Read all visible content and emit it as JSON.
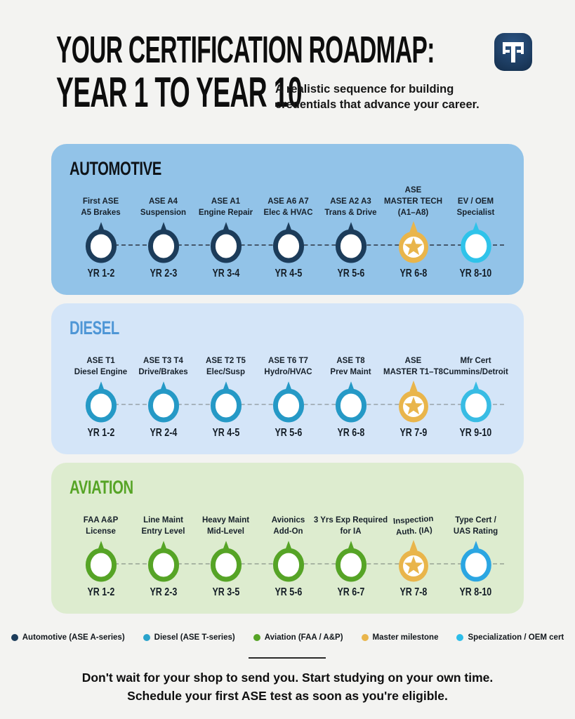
{
  "header": {
    "title_line1": "YOUR CERTIFICATION ROADMAP:",
    "title_line2": "YEAR 1 TO YEAR 10",
    "subtitle_line1": "A realistic sequence for building",
    "subtitle_line2": "credentials that advance your career.",
    "logo_monogram": "TF",
    "logo_bg_color": "#1d3c63"
  },
  "colors": {
    "page_bg": "#f3f3f1",
    "master_gold": "#e9b54b",
    "specialist_cyan": "#2cbde9"
  },
  "sections": [
    {
      "name": "AUTOMOTIVE",
      "slug": "automotive",
      "bg": "#92c3e8",
      "title_color": "#0f1419",
      "node_color": "#1c3c5a",
      "specialist_color": "#2fc3ea",
      "master_color": "#e9b54b",
      "dash_color": "#45586b",
      "milestones": [
        {
          "label_lines": [
            "First ASE",
            "A5 Brakes"
          ],
          "year": "YR 1-2",
          "type": "core"
        },
        {
          "label_lines": [
            "ASE A4",
            "Suspension"
          ],
          "year": "YR 2-3",
          "type": "core"
        },
        {
          "label_lines": [
            "ASE A1",
            "Engine Repair"
          ],
          "year": "YR 3-4",
          "type": "core"
        },
        {
          "label_lines": [
            "ASE A6 A7",
            "Elec & HVAC"
          ],
          "year": "YR 4-5",
          "type": "core"
        },
        {
          "label_lines": [
            "ASE A2 A3",
            "Trans & Drive"
          ],
          "year": "YR 5-6",
          "type": "core"
        },
        {
          "label_lines": [
            "ASE",
            "MASTER TECH",
            "(A1–A8)"
          ],
          "year": "YR 6-8",
          "type": "master"
        },
        {
          "label_lines": [
            "EV / OEM",
            "Specialist"
          ],
          "year": "YR 8-10",
          "type": "specialist"
        }
      ]
    },
    {
      "name": "DIESEL",
      "slug": "diesel",
      "bg": "#d4e5f8",
      "title_color": "#4e96d6",
      "node_color": "#2599c6",
      "specialist_color": "#38bce4",
      "master_color": "#e9b54b",
      "dash_color": "#a7b3bd",
      "milestones": [
        {
          "label_lines": [
            "ASE T1",
            "Diesel Engine"
          ],
          "year": "YR 1-2",
          "type": "core"
        },
        {
          "label_lines": [
            "ASE T3 T4",
            "Drive/Brakes"
          ],
          "year": "YR 2-4",
          "type": "core"
        },
        {
          "label_lines": [
            "ASE T2 T5",
            "Elec/Susp"
          ],
          "year": "YR 4-5",
          "type": "core"
        },
        {
          "label_lines": [
            "ASE T6 T7",
            "Hydro/HVAC"
          ],
          "year": "YR 5-6",
          "type": "core"
        },
        {
          "label_lines": [
            "ASE T8",
            "Prev Maint"
          ],
          "year": "YR 6-8",
          "type": "core"
        },
        {
          "label_lines": [
            "ASE",
            "MASTER T1–T8"
          ],
          "year": "YR 7-9",
          "type": "master"
        },
        {
          "label_lines": [
            "Mfr Cert",
            "Cummins/Detroit"
          ],
          "year": "YR 9-10",
          "type": "specialist"
        }
      ]
    },
    {
      "name": "AVIATION",
      "slug": "aviation",
      "bg": "#ddeccf",
      "title_color": "#56a426",
      "node_color": "#56a426",
      "specialist_color": "#2ba6e2",
      "master_color": "#e9b54b",
      "dash_color": "#a8b5a3",
      "milestones": [
        {
          "label_lines": [
            "FAA A&P",
            "License"
          ],
          "year": "YR 1-2",
          "type": "core"
        },
        {
          "label_lines": [
            "Line Maint",
            "Entry Level"
          ],
          "year": "YR 2-3",
          "type": "core"
        },
        {
          "label_lines": [
            "Heavy Maint",
            "Mid-Level"
          ],
          "year": "YR 3-5",
          "type": "core"
        },
        {
          "label_lines": [
            "Avionics",
            "Add-On"
          ],
          "year": "YR 5-6",
          "type": "core"
        },
        {
          "label_lines": [
            "3 Yrs Exp Required",
            "for IA"
          ],
          "year": "YR 6-7",
          "type": "core"
        },
        {
          "label_lines": [
            "Inspection",
            "Auth. (IA)"
          ],
          "year": "YR 7-8",
          "type": "master",
          "tilt": true
        },
        {
          "label_lines": [
            "Type Cert /",
            "UAS Rating"
          ],
          "year": "YR 8-10",
          "type": "specialist"
        }
      ]
    }
  ],
  "legend": [
    {
      "label": "Automotive (ASE A-series)",
      "color": "#1c3c5a"
    },
    {
      "label": "Diesel (ASE T-series)",
      "color": "#2aa3cb"
    },
    {
      "label": "Aviation (FAA / A&P)",
      "color": "#56a426"
    },
    {
      "label": "Master milestone",
      "color": "#e9b54b"
    },
    {
      "label": "Specialization / OEM cert",
      "color": "#2cbde9"
    }
  ],
  "footer": {
    "line1": "Don't wait for your shop to send you. Start studying on your own time.",
    "line2": "Schedule your first ASE test as soon as you're eligible."
  }
}
